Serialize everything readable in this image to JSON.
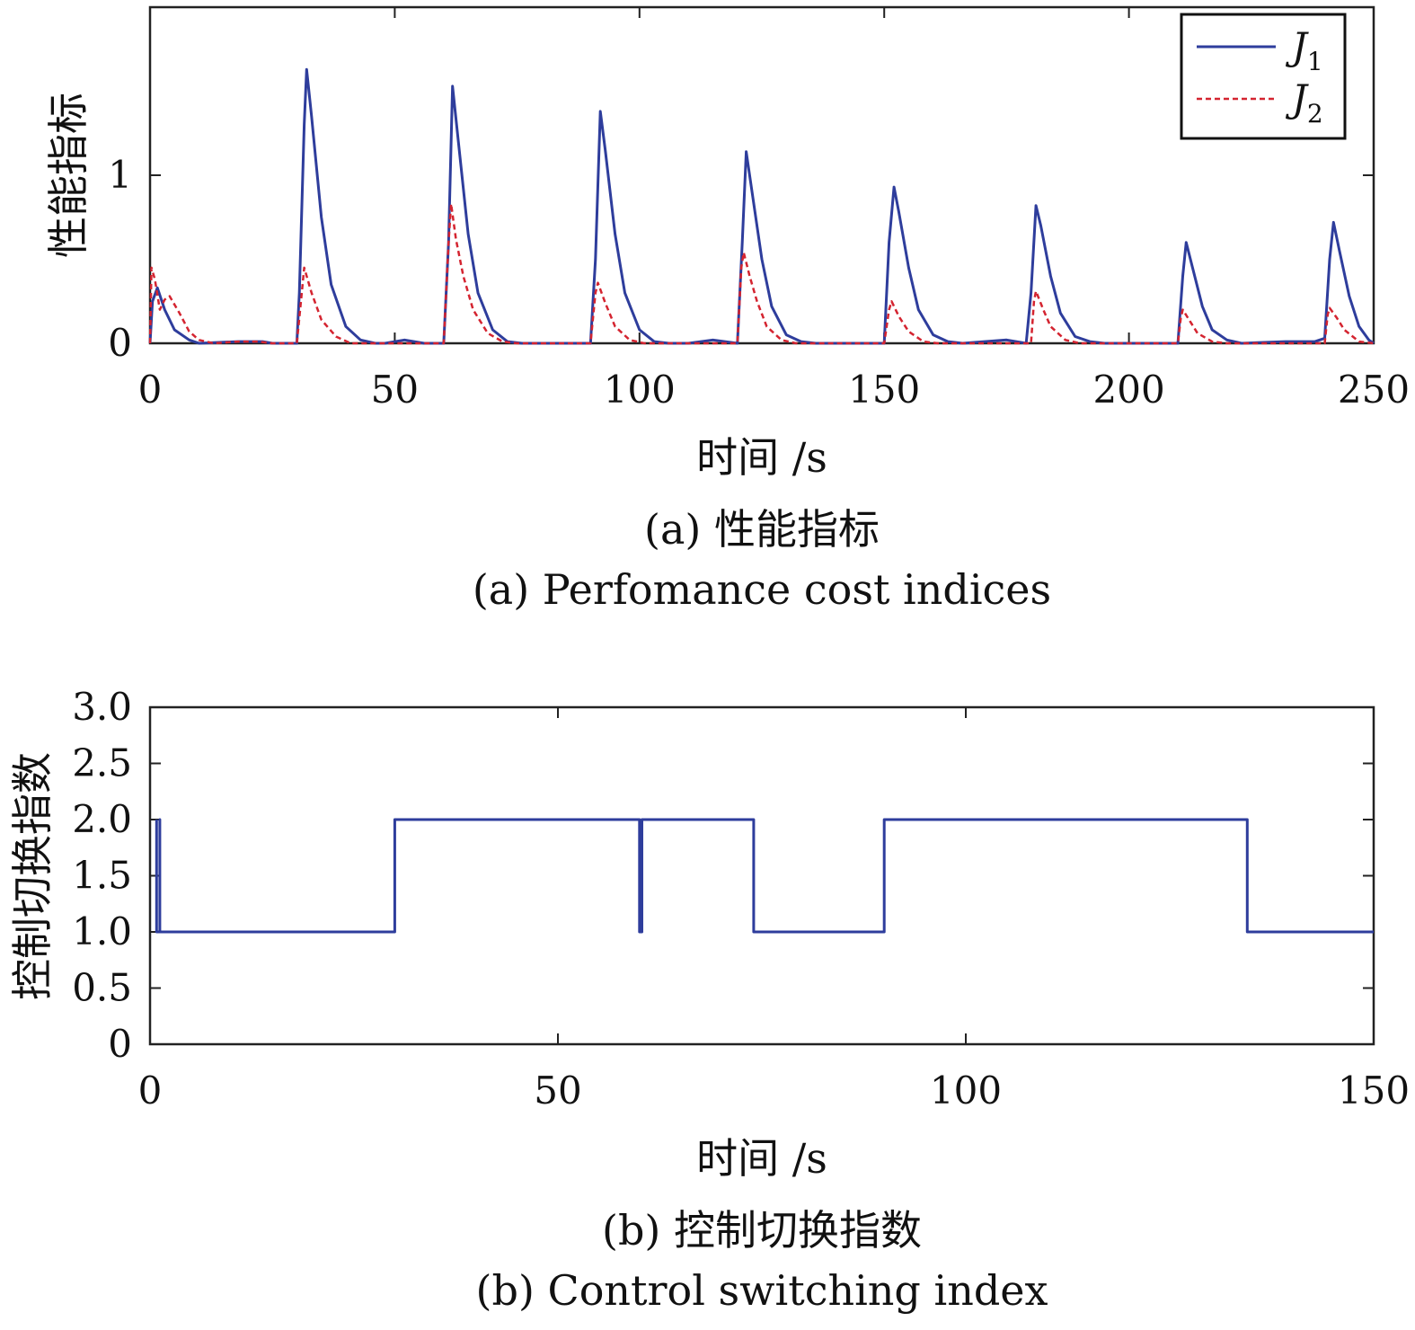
{
  "chart_data": [
    {
      "type": "line",
      "caption_zh": "(a) 性能指标",
      "caption_en": "(a) Perfomance cost indices",
      "xlabel": "时间 /s",
      "ylabel": "性能指标",
      "xlim": [
        0,
        250
      ],
      "ylim": [
        0,
        2
      ],
      "xticks": [
        0,
        50,
        100,
        150,
        200,
        250
      ],
      "yticks": [
        0,
        1
      ],
      "grid": false,
      "legend_position": "top-right",
      "series": [
        {
          "name": "J1",
          "legend_main": "J",
          "legend_sub": "1",
          "color": "#2e3d9c",
          "dash": "solid",
          "points": [
            [
              0,
              0
            ],
            [
              0.5,
              0.25
            ],
            [
              1.5,
              0.33
            ],
            [
              3,
              0.2
            ],
            [
              5,
              0.08
            ],
            [
              8,
              0.02
            ],
            [
              10,
              0
            ],
            [
              18,
              0.01
            ],
            [
              23,
              0.01
            ],
            [
              25,
              0
            ],
            [
              30,
              0
            ],
            [
              30.5,
              0.3
            ],
            [
              31.5,
              1.3
            ],
            [
              32,
              1.63
            ],
            [
              33,
              1.35
            ],
            [
              35,
              0.75
            ],
            [
              37,
              0.35
            ],
            [
              40,
              0.1
            ],
            [
              43,
              0.02
            ],
            [
              46,
              0
            ],
            [
              48,
              0
            ],
            [
              52,
              0.02
            ],
            [
              56,
              0
            ],
            [
              60,
              0
            ],
            [
              61,
              0.6
            ],
            [
              61.8,
              1.53
            ],
            [
              63,
              1.2
            ],
            [
              65,
              0.65
            ],
            [
              67,
              0.3
            ],
            [
              70,
              0.08
            ],
            [
              73,
              0.01
            ],
            [
              76,
              0
            ],
            [
              90,
              0
            ],
            [
              91,
              0.5
            ],
            [
              92,
              1.38
            ],
            [
              93,
              1.15
            ],
            [
              95,
              0.65
            ],
            [
              97,
              0.3
            ],
            [
              100,
              0.08
            ],
            [
              103,
              0.01
            ],
            [
              106,
              0
            ],
            [
              110,
              0
            ],
            [
              115,
              0.02
            ],
            [
              120,
              0
            ],
            [
              121,
              0.6
            ],
            [
              121.8,
              1.14
            ],
            [
              123,
              0.9
            ],
            [
              125,
              0.5
            ],
            [
              127,
              0.22
            ],
            [
              130,
              0.05
            ],
            [
              133,
              0.01
            ],
            [
              136,
              0
            ],
            [
              150,
              0
            ],
            [
              151,
              0.6
            ],
            [
              152,
              0.93
            ],
            [
              153,
              0.78
            ],
            [
              155,
              0.45
            ],
            [
              157,
              0.2
            ],
            [
              160,
              0.05
            ],
            [
              163,
              0.01
            ],
            [
              166,
              0
            ],
            [
              175,
              0.02
            ],
            [
              179,
              0
            ],
            [
              180,
              0.3
            ],
            [
              181,
              0.82
            ],
            [
              182,
              0.7
            ],
            [
              184,
              0.4
            ],
            [
              186,
              0.18
            ],
            [
              189,
              0.04
            ],
            [
              192,
              0.01
            ],
            [
              195,
              0
            ],
            [
              210,
              0
            ],
            [
              211,
              0.4
            ],
            [
              211.7,
              0.6
            ],
            [
              213,
              0.45
            ],
            [
              215,
              0.22
            ],
            [
              217,
              0.08
            ],
            [
              220,
              0.02
            ],
            [
              223,
              0
            ],
            [
              232,
              0.01
            ],
            [
              238,
              0.01
            ],
            [
              240,
              0.03
            ],
            [
              241,
              0.5
            ],
            [
              241.8,
              0.72
            ],
            [
              243,
              0.55
            ],
            [
              245,
              0.28
            ],
            [
              247,
              0.1
            ],
            [
              249,
              0.02
            ],
            [
              250,
              0
            ]
          ]
        },
        {
          "name": "J2",
          "legend_main": "J",
          "legend_sub": "2",
          "color": "#d42430",
          "dash": "dashed",
          "points": [
            [
              0,
              0
            ],
            [
              0.3,
              0.45
            ],
            [
              1,
              0.38
            ],
            [
              2,
              0.2
            ],
            [
              3,
              0.26
            ],
            [
              4,
              0.28
            ],
            [
              6,
              0.18
            ],
            [
              8,
              0.07
            ],
            [
              10,
              0.02
            ],
            [
              13,
              0
            ],
            [
              18,
              0.01
            ],
            [
              22,
              0.01
            ],
            [
              25,
              0
            ],
            [
              30,
              0
            ],
            [
              31,
              0.3
            ],
            [
              31.5,
              0.45
            ],
            [
              33,
              0.3
            ],
            [
              35,
              0.14
            ],
            [
              38,
              0.04
            ],
            [
              41,
              0
            ],
            [
              60,
              0
            ],
            [
              61,
              0.6
            ],
            [
              61.5,
              0.83
            ],
            [
              62.5,
              0.62
            ],
            [
              64,
              0.4
            ],
            [
              66,
              0.2
            ],
            [
              69,
              0.06
            ],
            [
              72,
              0.01
            ],
            [
              75,
              0
            ],
            [
              90,
              0
            ],
            [
              91,
              0.3
            ],
            [
              91.5,
              0.36
            ],
            [
              93,
              0.24
            ],
            [
              95,
              0.1
            ],
            [
              98,
              0.02
            ],
            [
              101,
              0
            ],
            [
              120,
              0
            ],
            [
              120.8,
              0.45
            ],
            [
              121.3,
              0.54
            ],
            [
              122.5,
              0.4
            ],
            [
              124,
              0.25
            ],
            [
              126,
              0.1
            ],
            [
              129,
              0.02
            ],
            [
              132,
              0
            ],
            [
              150,
              0
            ],
            [
              151,
              0.2
            ],
            [
              151.5,
              0.25
            ],
            [
              153,
              0.16
            ],
            [
              155,
              0.07
            ],
            [
              158,
              0.01
            ],
            [
              161,
              0
            ],
            [
              180,
              0
            ],
            [
              180.6,
              0.25
            ],
            [
              181,
              0.31
            ],
            [
              182.5,
              0.2
            ],
            [
              184,
              0.1
            ],
            [
              187,
              0.02
            ],
            [
              190,
              0
            ],
            [
              210,
              0
            ],
            [
              210.6,
              0.15
            ],
            [
              211,
              0.2
            ],
            [
              212.5,
              0.13
            ],
            [
              214,
              0.06
            ],
            [
              217,
              0.01
            ],
            [
              220,
              0
            ],
            [
              240,
              0
            ],
            [
              240.6,
              0.17
            ],
            [
              241,
              0.21
            ],
            [
              242.5,
              0.15
            ],
            [
              244,
              0.08
            ],
            [
              247,
              0.01
            ],
            [
              250,
              0
            ]
          ]
        }
      ]
    },
    {
      "type": "line",
      "caption_zh": "(b) 控制切换指数",
      "caption_en": "(b) Control switching index",
      "xlabel": "时间 /s",
      "ylabel": "控制切换指数",
      "xlim": [
        0,
        150
      ],
      "ylim": [
        0,
        3
      ],
      "xticks": [
        0,
        50,
        100,
        150
      ],
      "yticks": [
        0,
        0.5,
        1.0,
        1.5,
        2.0,
        2.5,
        3.0
      ],
      "ytick_labels": [
        "0",
        "0.5",
        "1.0",
        "1.5",
        "2.0",
        "2.5",
        "3.0"
      ],
      "grid": false,
      "series": [
        {
          "name": "",
          "color": "#2e3d9c",
          "dash": "solid",
          "points": [
            [
              0.8,
              2
            ],
            [
              0.8,
              1
            ],
            [
              1.2,
              1
            ],
            [
              1.2,
              2
            ],
            [
              1.2,
              1
            ],
            [
              30,
              1
            ],
            [
              30,
              2
            ],
            [
              60,
              2
            ],
            [
              60,
              1
            ],
            [
              60.3,
              1
            ],
            [
              60.3,
              2
            ],
            [
              74,
              2
            ],
            [
              74,
              1
            ],
            [
              90,
              1
            ],
            [
              90,
              2
            ],
            [
              134.5,
              2
            ],
            [
              134.5,
              1
            ],
            [
              150,
              1
            ]
          ]
        }
      ]
    }
  ]
}
